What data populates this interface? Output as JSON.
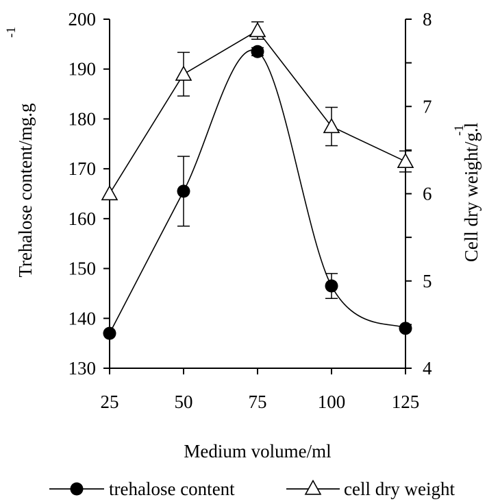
{
  "chart_data": {
    "type": "line",
    "x_categories": [
      "25",
      "50",
      "75",
      "100",
      "125"
    ],
    "x": [
      25,
      50,
      75,
      100,
      125
    ],
    "xlabel": "Medium volume/ml",
    "ylabel_left": "Trehalose content/mg.g",
    "ylabel_left_sup": "-1",
    "ylabel_right": "Cell dry weight/g.l",
    "ylabel_right_sup": "-1",
    "ylim_left": [
      130,
      200
    ],
    "yticks_left": [
      "130",
      "140",
      "150",
      "160",
      "170",
      "180",
      "190",
      "200"
    ],
    "ylim_right": [
      4,
      8
    ],
    "yticks_right": [
      "4",
      "5",
      "6",
      "7",
      "8"
    ],
    "series": [
      {
        "name": "trehalose content",
        "axis": "left",
        "marker": "filled-circle",
        "values": [
          137,
          165.5,
          193.5,
          146.5,
          138
        ],
        "errors": [
          0,
          7,
          0.8,
          2.5,
          0
        ],
        "curve": "smoothed"
      },
      {
        "name": "cell dry weight",
        "axis": "right",
        "marker": "open-triangle",
        "values": [
          6.0,
          7.37,
          7.87,
          6.77,
          6.37
        ],
        "errors": [
          0,
          0.25,
          0.1,
          0.22,
          0.12
        ],
        "curve": "straight"
      }
    ],
    "legend_position": "bottom",
    "grid": false
  }
}
